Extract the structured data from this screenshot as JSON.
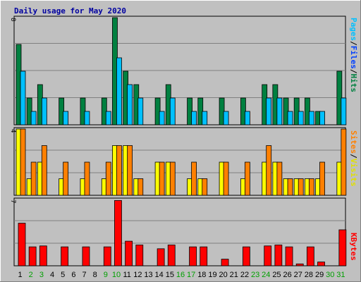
{
  "chart_data": [
    {
      "type": "bar",
      "panel": "top",
      "title": "Daily usage for May 2020",
      "categories": [
        "1",
        "2",
        "3",
        "4",
        "5",
        "6",
        "7",
        "8",
        "9",
        "10",
        "11",
        "12",
        "13",
        "14",
        "15",
        "16",
        "17",
        "18",
        "19",
        "20",
        "21",
        "22",
        "23",
        "24",
        "25",
        "26",
        "27",
        "28",
        "29",
        "30",
        "31"
      ],
      "y_tick_label": "8",
      "ylim": [
        0,
        8
      ],
      "series": [
        {
          "name": "Hits",
          "color": "#008040",
          "values": [
            6,
            2,
            3,
            0,
            2,
            0,
            2,
            0,
            2,
            8,
            4,
            3,
            0,
            2,
            3,
            0,
            2,
            2,
            0,
            2,
            0,
            2,
            0,
            3,
            3,
            2,
            2,
            2,
            1,
            0,
            4
          ]
        },
        {
          "name": "Files",
          "color": "#00C0FF",
          "values": [
            4,
            1,
            2,
            0,
            1,
            0,
            1,
            0,
            1,
            5,
            3,
            2,
            0,
            1,
            2,
            0,
            1,
            1,
            0,
            1,
            0,
            1,
            0,
            2,
            2,
            1,
            1,
            1,
            1,
            0,
            2
          ]
        },
        {
          "name": "Pages",
          "color": "#00C0FF",
          "values": null
        }
      ]
    },
    {
      "type": "bar",
      "panel": "middle",
      "categories": [
        "1",
        "2",
        "3",
        "4",
        "5",
        "6",
        "7",
        "8",
        "9",
        "10",
        "11",
        "12",
        "13",
        "14",
        "15",
        "16",
        "17",
        "18",
        "19",
        "20",
        "21",
        "22",
        "23",
        "24",
        "25",
        "26",
        "27",
        "28",
        "29",
        "30",
        "31"
      ],
      "y_tick_label": "4",
      "ylim": [
        0,
        4
      ],
      "series": [
        {
          "name": "Visits",
          "color": "#FFFF00",
          "values": [
            4,
            1,
            2,
            0,
            1,
            0,
            1,
            0,
            1,
            3,
            3,
            1,
            0,
            2,
            2,
            0,
            1,
            1,
            0,
            2,
            0,
            1,
            0,
            2,
            2,
            1,
            1,
            1,
            1,
            0,
            2
          ]
        },
        {
          "name": "Sites",
          "color": "#FF8000",
          "values": [
            4,
            2,
            3,
            0,
            2,
            0,
            2,
            0,
            2,
            3,
            3,
            1,
            0,
            2,
            2,
            0,
            2,
            1,
            0,
            2,
            0,
            2,
            0,
            3,
            2,
            1,
            1,
            1,
            2,
            0,
            4
          ]
        }
      ]
    },
    {
      "type": "bar",
      "panel": "bottom",
      "categories": [
        "1",
        "2",
        "3",
        "4",
        "5",
        "6",
        "7",
        "8",
        "9",
        "10",
        "11",
        "12",
        "13",
        "14",
        "15",
        "16",
        "17",
        "18",
        "19",
        "20",
        "21",
        "22",
        "23",
        "24",
        "25",
        "26",
        "27",
        "28",
        "29",
        "30",
        "31"
      ],
      "y_tick_label": "7",
      "ylim": [
        0,
        7
      ],
      "series": [
        {
          "name": "KBytes",
          "color": "#FF0000",
          "values": [
            4.5,
            2.0,
            2.1,
            0,
            2.0,
            0,
            2.0,
            0,
            2.0,
            6.9,
            2.6,
            2.2,
            0,
            1.8,
            2.2,
            0,
            2.0,
            2.0,
            0,
            0.7,
            0,
            2.0,
            0,
            2.1,
            2.2,
            2.0,
            0.2,
            2.0,
            0.4,
            0,
            3.8
          ]
        }
      ]
    }
  ],
  "legend": {
    "top": [
      {
        "label": "Pages",
        "color": "#00C0FF"
      },
      {
        "label": "/",
        "color": "#000000"
      },
      {
        "label": "Files",
        "color": "#0040FF"
      },
      {
        "label": "/",
        "color": "#000000"
      },
      {
        "label": "Hits",
        "color": "#008040"
      }
    ],
    "middle": [
      {
        "label": "Sites",
        "color": "#FF8000"
      },
      {
        "label": "/",
        "color": "#000000"
      },
      {
        "label": "Visits",
        "color": "#E0E000"
      }
    ],
    "bottom": [
      {
        "label": "KBytes",
        "color": "#FF0000"
      }
    ]
  },
  "x_axis": {
    "weekday_color": "#000000",
    "weekend_color": "#00A000",
    "weekend_days": [
      "2",
      "3",
      "9",
      "10",
      "16",
      "17",
      "23",
      "24",
      "30",
      "31"
    ]
  },
  "colors": {
    "title": "#0000A0",
    "background": "#C0C0C0",
    "gridline": "#808080"
  }
}
